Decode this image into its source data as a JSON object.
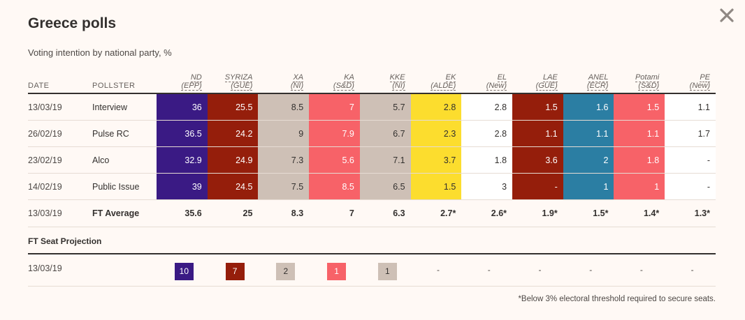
{
  "header": {
    "title": "Greece polls",
    "subtitle": "Voting intention by national party, %"
  },
  "colors": {
    "ND": "#3a1a84",
    "SYRIZA": "#951e0b",
    "XA": "#cec0b6",
    "KA": "#f76268",
    "KKE": "#cec0b6",
    "EK": "#fcdd2e",
    "EL": "#ffffff",
    "LAE": "#951e0b",
    "ANEL": "#2b7ea3",
    "Potami": "#f76268",
    "PE": "#ffffff"
  },
  "chart_data": {
    "type": "table",
    "columns": {
      "date": "DATE",
      "pollster": "POLLSTER",
      "parties": [
        {
          "key": "ND",
          "name": "ND",
          "group": "(EPP)"
        },
        {
          "key": "SYRIZA",
          "name": "SYRIZA",
          "group": "(GUE)"
        },
        {
          "key": "XA",
          "name": "XA",
          "group": "(NI)"
        },
        {
          "key": "KA",
          "name": "KA",
          "group": "(S&D)"
        },
        {
          "key": "KKE",
          "name": "KKE",
          "group": "(NI)"
        },
        {
          "key": "EK",
          "name": "EK",
          "group": "(ALDE)"
        },
        {
          "key": "EL",
          "name": "EL",
          "group": "(New)"
        },
        {
          "key": "LAE",
          "name": "LAE",
          "group": "(GUE)"
        },
        {
          "key": "ANEL",
          "name": "ANEL",
          "group": "(ECR)"
        },
        {
          "key": "Potami",
          "name": "Potami",
          "group": "(S&D)"
        },
        {
          "key": "PE",
          "name": "PE",
          "group": "(New)"
        }
      ]
    },
    "rows": [
      {
        "date": "13/03/19",
        "pollster": "Interview",
        "values": [
          "36",
          "25.5",
          "8.5",
          "7",
          "5.7",
          "2.8",
          "2.8",
          "1.5",
          "1.6",
          "1.5",
          "1.1"
        ]
      },
      {
        "date": "26/02/19",
        "pollster": "Pulse RC",
        "values": [
          "36.5",
          "24.2",
          "9",
          "7.9",
          "6.7",
          "2.3",
          "2.8",
          "1.1",
          "1.1",
          "1.1",
          "1.7"
        ]
      },
      {
        "date": "23/02/19",
        "pollster": "Alco",
        "values": [
          "32.9",
          "24.9",
          "7.3",
          "5.6",
          "7.1",
          "3.7",
          "1.8",
          "3.6",
          "2",
          "1.8",
          "-"
        ]
      },
      {
        "date": "14/02/19",
        "pollster": "Public Issue",
        "values": [
          "39",
          "24.5",
          "7.5",
          "8.5",
          "6.5",
          "1.5",
          "3",
          "-",
          "1",
          "1",
          "-"
        ]
      }
    ],
    "average": {
      "date": "13/03/19",
      "pollster": "FT Average",
      "values": [
        "35.6",
        "25",
        "8.3",
        "7",
        "6.3",
        "2.7*",
        "2.6*",
        "1.9*",
        "1.5*",
        "1.4*",
        "1.3*"
      ]
    },
    "seat_projection": {
      "title": "FT Seat Projection",
      "date": "13/03/19",
      "values": [
        "10",
        "7",
        "2",
        "1",
        "1",
        "-",
        "-",
        "-",
        "-",
        "-",
        "-"
      ]
    }
  },
  "footnote": "*Below 3% electoral threshold required to secure seats.",
  "icons": {
    "close": "close-icon"
  }
}
